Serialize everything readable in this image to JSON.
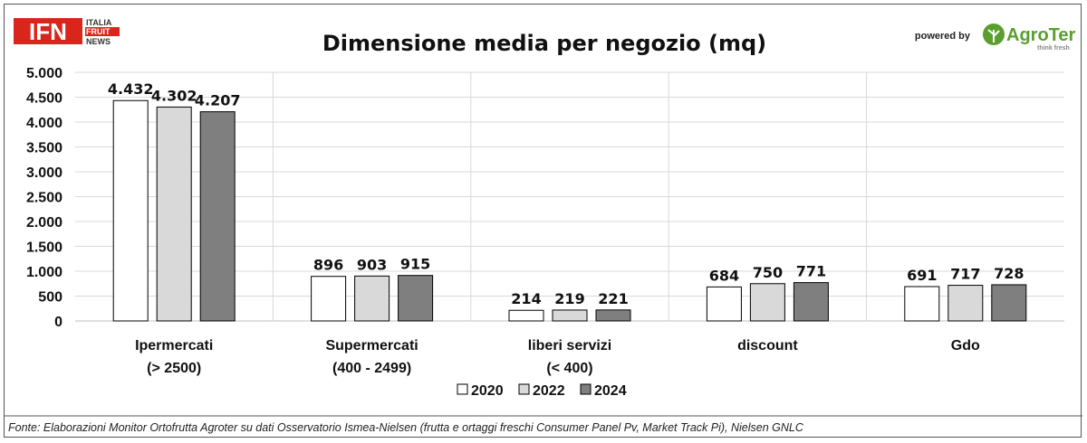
{
  "logos": {
    "ifn_mark": "IFN",
    "ifn_line1": "ITALIA",
    "ifn_line2": "FRUIT",
    "ifn_line3": "NEWS",
    "powered_by": "powered by",
    "agroter_name": "AgroTer",
    "agroter_tagline": "think fresh"
  },
  "footer": {
    "source": "Fonte: Elaborazioni Monitor Ortofrutta Agroter su dati Osservatorio Ismea-Nielsen (frutta e ortaggi freschi  Consumer Panel Pv, Market Track Pi), Nielsen GNLC"
  },
  "colors": {
    "s2020": "#ffffff",
    "s2022": "#d9d9d9",
    "s2024": "#7f7f7f",
    "ifn_red": "#d9261c",
    "agroter_green": "#5a9e2f"
  },
  "chart_data": {
    "type": "bar",
    "title": "Dimensione media per negozio (mq)",
    "xlabel": "",
    "ylabel": "",
    "ylim": [
      0,
      5000
    ],
    "yticks": [
      {
        "value": 0,
        "label": "0"
      },
      {
        "value": 500,
        "label": "500"
      },
      {
        "value": 1000,
        "label": "1.000"
      },
      {
        "value": 1500,
        "label": "1.500"
      },
      {
        "value": 2000,
        "label": "2.000"
      },
      {
        "value": 2500,
        "label": "2.500"
      },
      {
        "value": 3000,
        "label": "3.000"
      },
      {
        "value": 3500,
        "label": "3.500"
      },
      {
        "value": 4000,
        "label": "4.000"
      },
      {
        "value": 4500,
        "label": "4.500"
      },
      {
        "value": 5000,
        "label": "5.000"
      }
    ],
    "grid": true,
    "legend": "bottom",
    "categories": [
      [
        "Ipermercati",
        "(> 2500)"
      ],
      [
        "Supermercati",
        "(400 - 2499)"
      ],
      [
        "liberi servizi",
        "(< 400)"
      ],
      [
        "discount"
      ],
      [
        "Gdo"
      ]
    ],
    "series": [
      {
        "name": "2020",
        "values": [
          4432,
          896,
          214,
          684,
          691
        ],
        "labels": [
          "4.432",
          "896",
          "214",
          "684",
          "691"
        ]
      },
      {
        "name": "2022",
        "values": [
          4302,
          903,
          219,
          750,
          717
        ],
        "labels": [
          "4.302",
          "903",
          "219",
          "750",
          "717"
        ]
      },
      {
        "name": "2024",
        "values": [
          4207,
          915,
          221,
          771,
          728
        ],
        "labels": [
          "4.207",
          "915",
          "221",
          "771",
          "728"
        ]
      }
    ]
  }
}
